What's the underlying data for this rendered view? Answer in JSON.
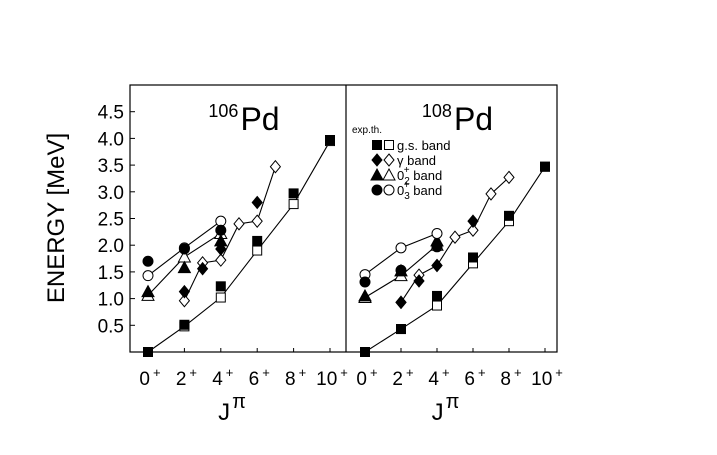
{
  "chart_data": {
    "type": "scatter",
    "ylabel": "ENERGY [MeV]",
    "xlabel_base": "J",
    "xlabel_sup": "π",
    "ylim": [
      0,
      5.0
    ],
    "yticks": [
      "0.5",
      "1.0",
      "1.5",
      "2.0",
      "2.5",
      "3.0",
      "3.5",
      "4.0",
      "4.5"
    ],
    "xticks": [
      {
        "base": "0",
        "sup": "+"
      },
      {
        "base": "2",
        "sup": "+"
      },
      {
        "base": "4",
        "sup": "+"
      },
      {
        "base": "6",
        "sup": "+"
      },
      {
        "base": "8",
        "sup": "+"
      },
      {
        "base": "10",
        "sup": "+"
      }
    ],
    "legend": {
      "header": "exp.th.",
      "entries": [
        {
          "label": "g.s. band",
          "shape": "square"
        },
        {
          "label": "γ  band",
          "shape": "diamond"
        },
        {
          "label_main": "0",
          "label_sub": "2",
          "label_sup": "+",
          "label_rest": " band",
          "shape": "triangle"
        },
        {
          "label_main": "0",
          "label_sub": "3",
          "label_sup": "+",
          "label_rest": " band",
          "shape": "circle"
        }
      ]
    },
    "panels": [
      {
        "mass": "106",
        "element": "Pd",
        "bands": [
          {
            "shape": "square",
            "exp": [
              [
                0,
                0.0
              ],
              [
                2,
                0.51
              ],
              [
                4,
                1.23
              ],
              [
                6,
                2.08
              ],
              [
                8,
                2.97
              ],
              [
                10,
                3.97
              ]
            ],
            "th": [
              [
                0,
                0.0
              ],
              [
                2,
                0.48
              ],
              [
                4,
                1.02
              ],
              [
                6,
                1.9
              ],
              [
                8,
                2.77
              ],
              [
                10,
                3.95
              ]
            ]
          },
          {
            "shape": "diamond",
            "exp": [
              [
                2,
                1.13
              ],
              [
                3,
                1.56
              ],
              [
                4,
                1.93
              ],
              [
                6,
                2.8
              ]
            ],
            "th": [
              [
                2,
                0.96
              ],
              [
                3,
                1.67
              ],
              [
                4,
                1.72
              ],
              [
                5,
                2.4
              ],
              [
                6,
                2.45
              ],
              [
                7,
                3.47
              ]
            ]
          },
          {
            "shape": "triangle",
            "exp": [
              [
                0,
                1.13
              ],
              [
                2,
                1.58
              ],
              [
                4,
                2.08
              ]
            ],
            "th": [
              [
                0,
                1.06
              ],
              [
                2,
                1.78
              ],
              [
                4,
                2.22
              ]
            ]
          },
          {
            "shape": "circle",
            "exp": [
              [
                0,
                1.7
              ],
              [
                2,
                1.93
              ],
              [
                4,
                2.28
              ]
            ],
            "th": [
              [
                0,
                1.43
              ],
              [
                2,
                1.95
              ],
              [
                4,
                2.45
              ]
            ]
          }
        ]
      },
      {
        "mass": "108",
        "element": "Pd",
        "bands": [
          {
            "shape": "square",
            "exp": [
              [
                0,
                0.0
              ],
              [
                2,
                0.43
              ],
              [
                4,
                1.05
              ],
              [
                6,
                1.77
              ],
              [
                8,
                2.55
              ],
              [
                10,
                3.47
              ]
            ],
            "th": [
              [
                0,
                0.0
              ],
              [
                2,
                0.43
              ],
              [
                4,
                0.87
              ],
              [
                6,
                1.66
              ],
              [
                8,
                2.45
              ],
              [
                10,
                3.47
              ]
            ]
          },
          {
            "shape": "diamond",
            "exp": [
              [
                2,
                0.93
              ],
              [
                3,
                1.33
              ],
              [
                4,
                1.62
              ],
              [
                6,
                2.45
              ]
            ],
            "th": [
              [
                2,
                0.93
              ],
              [
                3,
                1.44
              ],
              [
                4,
                1.62
              ],
              [
                5,
                2.15
              ],
              [
                6,
                2.28
              ],
              [
                7,
                2.96
              ],
              [
                8,
                3.27
              ]
            ]
          },
          {
            "shape": "triangle",
            "exp": [
              [
                0,
                1.05
              ],
              [
                2,
                1.52
              ],
              [
                4,
                2.08
              ]
            ],
            "th": [
              [
                0,
                1.02
              ],
              [
                2,
                1.43
              ],
              [
                4,
                2.0
              ]
            ]
          },
          {
            "shape": "circle",
            "exp": [
              [
                0,
                1.31
              ],
              [
                2,
                1.53
              ],
              [
                4,
                1.97
              ]
            ],
            "th": [
              [
                0,
                1.45
              ],
              [
                2,
                1.95
              ],
              [
                4,
                2.22
              ]
            ]
          }
        ]
      }
    ]
  }
}
